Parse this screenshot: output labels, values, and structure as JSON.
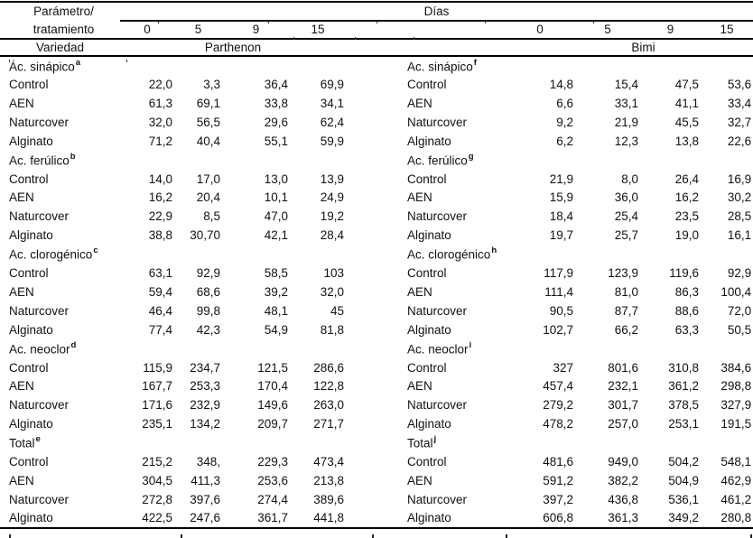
{
  "colors": {
    "text": "#111111",
    "rule": "#000000",
    "background": "#ffffff"
  },
  "header": {
    "param_line1": "Parámetro/",
    "param_line2": "tratamiento",
    "dias": "Días",
    "days": [
      "0",
      "5",
      "9",
      "15"
    ],
    "variedad": "Variedad",
    "varieties": {
      "left": "Parthenon",
      "right": "Bimi"
    }
  },
  "sections_left": [
    {
      "label": "Ác. sinápico",
      "footnote": "a",
      "rows": [
        {
          "treatment": "Control",
          "values": [
            "22,0",
            "3,3",
            "36,4",
            "69,9"
          ]
        },
        {
          "treatment": "AEN",
          "values": [
            "61,3",
            "69,1",
            "33,8",
            "34,1"
          ]
        },
        {
          "treatment": "Naturcover",
          "values": [
            "32,0",
            "56,5",
            "29,6",
            "62,4"
          ]
        },
        {
          "treatment": "Alginato",
          "values": [
            "71,2",
            "40,4",
            "55,1",
            "59,9"
          ]
        }
      ]
    },
    {
      "label": "Ac. ferúlico",
      "footnote": "b",
      "rows": [
        {
          "treatment": "Control",
          "values": [
            "14,0",
            "17,0",
            "13,0",
            "13,9"
          ]
        },
        {
          "treatment": "AEN",
          "values": [
            "16,2",
            "20,4",
            "10,1",
            "24,9"
          ]
        },
        {
          "treatment": "Naturcover",
          "values": [
            "22,9",
            "8,5",
            "47,0",
            "19,2"
          ]
        },
        {
          "treatment": "Alginato",
          "values": [
            "38,8",
            "30,70",
            "42,1",
            "28,4"
          ]
        }
      ]
    },
    {
      "label": "Ac. clorogénico",
      "footnote": "c",
      "rows": [
        {
          "treatment": "Control",
          "values": [
            "63,1",
            "92,9",
            "58,5",
            "103"
          ]
        },
        {
          "treatment": "AEN",
          "values": [
            "59,4",
            "68,6",
            "39,2",
            "32,0"
          ]
        },
        {
          "treatment": "Naturcover",
          "values": [
            "46,4",
            "99,8",
            "48,1",
            "45"
          ]
        },
        {
          "treatment": "Alginato",
          "values": [
            "77,4",
            "42,3",
            "54,9",
            "81,8"
          ]
        }
      ]
    },
    {
      "label": "Ac. neoclor",
      "footnote": "d",
      "rows": [
        {
          "treatment": "Control",
          "values": [
            "115,9",
            "234,7",
            "121,5",
            "286,6"
          ]
        },
        {
          "treatment": "AEN",
          "values": [
            "167,7",
            "253,3",
            "170,4",
            "122,8"
          ]
        },
        {
          "treatment": "Naturcover",
          "values": [
            "171,6",
            "232,9",
            "149,6",
            "263,0"
          ]
        },
        {
          "treatment": "Alginato",
          "values": [
            "235,1",
            "134,2",
            "209,7",
            "271,7"
          ]
        }
      ]
    },
    {
      "label": "Total",
      "footnote": "e",
      "rows": [
        {
          "treatment": "Control",
          "values": [
            "215,2",
            "348,",
            "229,3",
            "473,4"
          ]
        },
        {
          "treatment": "AEN",
          "values": [
            "304,5",
            "411,3",
            "253,6",
            "213,8"
          ]
        },
        {
          "treatment": "Naturcover",
          "values": [
            "272,8",
            "397,6",
            "274,4",
            "389,6"
          ]
        },
        {
          "treatment": "Alginato",
          "values": [
            "422,5",
            "247,6",
            "361,7",
            "441,8"
          ]
        }
      ]
    }
  ],
  "sections_right": [
    {
      "label": "Ac. sinápico",
      "footnote": "f",
      "rows": [
        {
          "treatment": "Control",
          "values": [
            "14,8",
            "15,4",
            "47,5",
            "53,6"
          ]
        },
        {
          "treatment": "AEN",
          "values": [
            "6,6",
            "33,1",
            "41,1",
            "33,4"
          ]
        },
        {
          "treatment": "Naturcover",
          "values": [
            "9,2",
            "21,9",
            "45,5",
            "32,7"
          ]
        },
        {
          "treatment": "Alginato",
          "values": [
            "6,2",
            "12,3",
            "13,8",
            "22,6"
          ]
        }
      ]
    },
    {
      "label": "Ac. ferúlico",
      "footnote": "g",
      "rows": [
        {
          "treatment": "Control",
          "values": [
            "21,9",
            "8,0",
            "26,4",
            "16,9"
          ]
        },
        {
          "treatment": "AEN",
          "values": [
            "15,9",
            "36,0",
            "16,2",
            "30,2"
          ]
        },
        {
          "treatment": "Naturcover",
          "values": [
            "18,4",
            "25,4",
            "23,5",
            "28,5"
          ]
        },
        {
          "treatment": "Alginato",
          "values": [
            "19,7",
            "25,7",
            "19,0",
            "16,1"
          ]
        }
      ]
    },
    {
      "label": "Ac. clorogénico",
      "footnote": "h",
      "rows": [
        {
          "treatment": "Control",
          "values": [
            "117,9",
            "123,9",
            "119,6",
            "92,9"
          ]
        },
        {
          "treatment": "AEN",
          "values": [
            "111,4",
            "81,0",
            "86,3",
            "100,4"
          ]
        },
        {
          "treatment": "Naturcover",
          "values": [
            "90,5",
            "87,7",
            "88,6",
            "72,0"
          ]
        },
        {
          "treatment": "Alginato",
          "values": [
            "102,7",
            "66,2",
            "63,3",
            "50,5"
          ]
        }
      ]
    },
    {
      "label": "Ac. neoclor",
      "footnote": "i",
      "rows": [
        {
          "treatment": "Control",
          "values": [
            "327",
            "801,6",
            "310,8",
            "384,6"
          ]
        },
        {
          "treatment": "AEN",
          "values": [
            "457,4",
            "232,1",
            "361,2",
            "298,8"
          ]
        },
        {
          "treatment": "Naturcover",
          "values": [
            "279,2",
            "301,7",
            "378,5",
            "327,9"
          ]
        },
        {
          "treatment": "Alginato",
          "values": [
            "478,2",
            "257,0",
            "253,1",
            "191,5"
          ]
        }
      ]
    },
    {
      "label": "Total",
      "footnote": "j",
      "rows": [
        {
          "treatment": "Control",
          "values": [
            "481,6",
            "949,0",
            "504,2",
            "548,1"
          ]
        },
        {
          "treatment": "AEN",
          "values": [
            "591,2",
            "382,2",
            "504,9",
            "462,9"
          ]
        },
        {
          "treatment": "Naturcover",
          "values": [
            "397,2",
            "436,8",
            "536,1",
            "461,2"
          ]
        },
        {
          "treatment": "Alginato",
          "values": [
            "606,8",
            "361,3",
            "349,2",
            "280,8"
          ]
        }
      ]
    }
  ]
}
